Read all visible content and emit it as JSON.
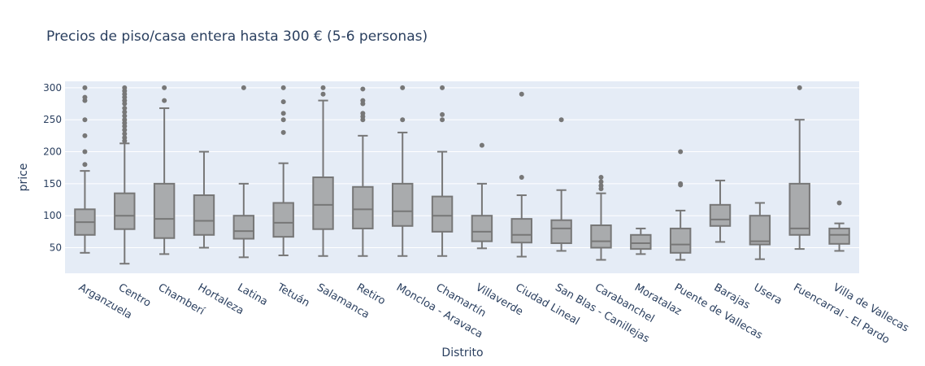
{
  "chart_data": {
    "type": "box",
    "title": "Precios de piso/casa entera hasta 300 € (5-6 personas)",
    "xlabel": "Distrito",
    "ylabel": "price",
    "ylim": [
      10,
      310
    ],
    "yticks": [
      50,
      100,
      150,
      200,
      250,
      300
    ],
    "grid": true,
    "colors": {
      "plot_bg": "#e5ecf6",
      "box_fill": "#a9abad",
      "box_line": "#777777",
      "text": "#2a3f5f",
      "grid": "#ffffff"
    },
    "categories": [
      "Arganzuela",
      "Centro",
      "Chamberí",
      "Hortaleza",
      "Latina",
      "Tetuán",
      "Salamanca",
      "Retiro",
      "Moncloa - Aravaca",
      "Chamartín",
      "Villaverde",
      "Ciudad Lineal",
      "San Blas - Canillejas",
      "Carabanchel",
      "Moratalaz",
      "Puente de Vallecas",
      "Barajas",
      "Usera",
      "Fuencarral - El Pardo",
      "Villa de Vallecas"
    ],
    "boxes": [
      {
        "min": 42,
        "q1": 70,
        "median": 90,
        "q3": 110,
        "max": 170,
        "outliers": [
          180,
          200,
          225,
          250,
          280,
          285,
          300
        ]
      },
      {
        "min": 25,
        "q1": 79,
        "median": 100,
        "q3": 135,
        "max": 213,
        "outliers": [
          217,
          222,
          228,
          234,
          240,
          245,
          250,
          256,
          262,
          268,
          275,
          280,
          285,
          290,
          295,
          300
        ]
      },
      {
        "min": 40,
        "q1": 65,
        "median": 95,
        "q3": 150,
        "max": 268,
        "outliers": [
          280,
          300
        ]
      },
      {
        "min": 50,
        "q1": 70,
        "median": 92,
        "q3": 132,
        "max": 200,
        "outliers": []
      },
      {
        "min": 35,
        "q1": 64,
        "median": 76,
        "q3": 100,
        "max": 150,
        "outliers": [
          300
        ]
      },
      {
        "min": 38,
        "q1": 67,
        "median": 89,
        "q3": 120,
        "max": 182,
        "outliers": [
          230,
          250,
          260,
          278,
          300
        ]
      },
      {
        "min": 37,
        "q1": 79,
        "median": 117,
        "q3": 160,
        "max": 280,
        "outliers": [
          290,
          300
        ]
      },
      {
        "min": 37,
        "q1": 80,
        "median": 110,
        "q3": 145,
        "max": 225,
        "outliers": [
          250,
          255,
          260,
          275,
          280,
          298
        ]
      },
      {
        "min": 37,
        "q1": 84,
        "median": 107,
        "q3": 150,
        "max": 230,
        "outliers": [
          250,
          300
        ]
      },
      {
        "min": 37,
        "q1": 75,
        "median": 100,
        "q3": 130,
        "max": 200,
        "outliers": [
          250,
          258,
          300
        ]
      },
      {
        "min": 49,
        "q1": 60,
        "median": 75,
        "q3": 100,
        "max": 150,
        "outliers": [
          210
        ]
      },
      {
        "min": 36,
        "q1": 58,
        "median": 70,
        "q3": 95,
        "max": 132,
        "outliers": [
          160,
          290
        ]
      },
      {
        "min": 45,
        "q1": 57,
        "median": 80,
        "q3": 93,
        "max": 140,
        "outliers": [
          250
        ]
      },
      {
        "min": 31,
        "q1": 50,
        "median": 60,
        "q3": 85,
        "max": 135,
        "outliers": [
          142,
          147,
          153,
          160
        ]
      },
      {
        "min": 40,
        "q1": 48,
        "median": 57,
        "q3": 70,
        "max": 80,
        "outliers": []
      },
      {
        "min": 31,
        "q1": 42,
        "median": 55,
        "q3": 80,
        "max": 108,
        "outliers": [
          148,
          150,
          200
        ]
      },
      {
        "min": 59,
        "q1": 84,
        "median": 94,
        "q3": 117,
        "max": 155,
        "outliers": []
      },
      {
        "min": 32,
        "q1": 55,
        "median": 60,
        "q3": 100,
        "max": 120,
        "outliers": []
      },
      {
        "min": 48,
        "q1": 70,
        "median": 80,
        "q3": 150,
        "max": 250,
        "outliers": [
          300
        ]
      },
      {
        "min": 45,
        "q1": 56,
        "median": 70,
        "q3": 80,
        "max": 88,
        "outliers": [
          120
        ]
      }
    ]
  }
}
